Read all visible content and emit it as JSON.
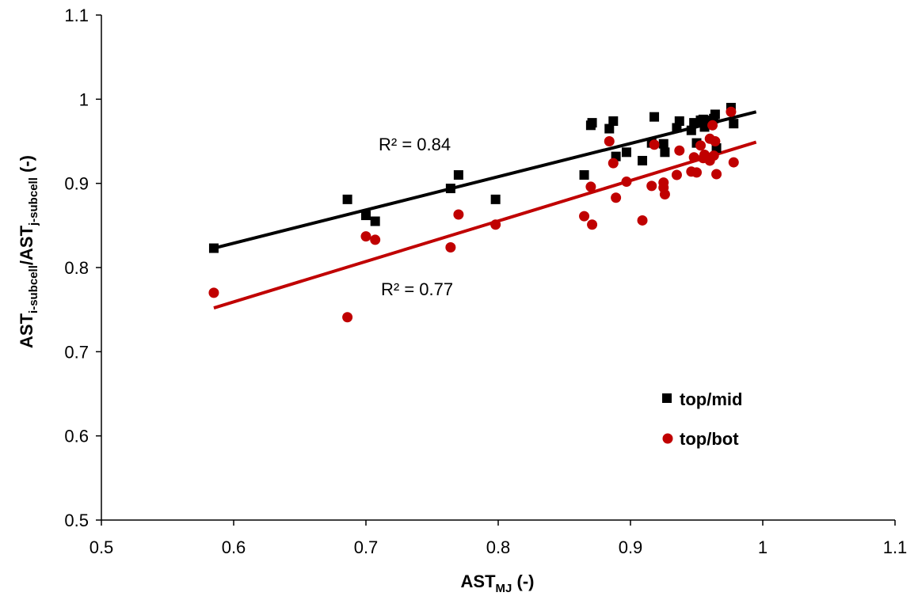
{
  "chart_data": {
    "type": "scatter",
    "title": "",
    "xlabel": {
      "main": "AST",
      "sub": "MJ",
      "suffix": " (-)"
    },
    "ylabel": {
      "p1": "AST",
      "s1": "i-subcell",
      "p2": "/AST",
      "s2": "j-subcell",
      "p3": " (-)"
    },
    "xlim": [
      0.5,
      1.1
    ],
    "ylim": [
      0.5,
      1.1
    ],
    "x_ticks": [
      "0.5",
      "0.6",
      "0.7",
      "0.8",
      "0.9",
      "1",
      "1.1"
    ],
    "y_ticks": [
      "0.5",
      "0.6",
      "0.7",
      "0.8",
      "0.9",
      "1",
      "1.1"
    ],
    "grid": false,
    "legend_position": "bottom-right",
    "series": [
      {
        "name": "top/mid",
        "marker": "square",
        "color": "#000000",
        "r2_label": "R² = 0.84",
        "trendline": {
          "x": [
            0.585,
            0.995
          ],
          "y": [
            0.823,
            0.985
          ]
        },
        "points": [
          [
            0.585,
            0.823
          ],
          [
            0.686,
            0.881
          ],
          [
            0.7,
            0.862
          ],
          [
            0.707,
            0.855
          ],
          [
            0.764,
            0.894
          ],
          [
            0.77,
            0.91
          ],
          [
            0.798,
            0.881
          ],
          [
            0.865,
            0.91
          ],
          [
            0.87,
            0.969
          ],
          [
            0.871,
            0.972
          ],
          [
            0.884,
            0.965
          ],
          [
            0.887,
            0.974
          ],
          [
            0.889,
            0.932
          ],
          [
            0.897,
            0.937
          ],
          [
            0.909,
            0.927
          ],
          [
            0.916,
            0.948
          ],
          [
            0.918,
            0.979
          ],
          [
            0.925,
            0.947
          ],
          [
            0.926,
            0.937
          ],
          [
            0.935,
            0.966
          ],
          [
            0.937,
            0.974
          ],
          [
            0.946,
            0.963
          ],
          [
            0.948,
            0.972
          ],
          [
            0.95,
            0.948
          ],
          [
            0.953,
            0.975
          ],
          [
            0.955,
            0.976
          ],
          [
            0.956,
            0.967
          ],
          [
            0.96,
            0.975
          ],
          [
            0.963,
            0.977
          ],
          [
            0.964,
            0.982
          ],
          [
            0.965,
            0.942
          ],
          [
            0.976,
            0.99
          ],
          [
            0.978,
            0.971
          ]
        ]
      },
      {
        "name": "top/bot",
        "marker": "circle",
        "color": "#c00000",
        "r2_label": "R² = 0.77",
        "trendline": {
          "x": [
            0.585,
            0.995
          ],
          "y": [
            0.752,
            0.949
          ]
        },
        "points": [
          [
            0.585,
            0.77
          ],
          [
            0.686,
            0.741
          ],
          [
            0.7,
            0.837
          ],
          [
            0.707,
            0.833
          ],
          [
            0.764,
            0.824
          ],
          [
            0.77,
            0.863
          ],
          [
            0.798,
            0.851
          ],
          [
            0.865,
            0.861
          ],
          [
            0.87,
            0.896
          ],
          [
            0.871,
            0.851
          ],
          [
            0.884,
            0.95
          ],
          [
            0.887,
            0.924
          ],
          [
            0.889,
            0.883
          ],
          [
            0.897,
            0.902
          ],
          [
            0.909,
            0.856
          ],
          [
            0.916,
            0.897
          ],
          [
            0.918,
            0.946
          ],
          [
            0.925,
            0.901
          ],
          [
            0.925,
            0.895
          ],
          [
            0.926,
            0.887
          ],
          [
            0.935,
            0.91
          ],
          [
            0.937,
            0.939
          ],
          [
            0.946,
            0.914
          ],
          [
            0.948,
            0.931
          ],
          [
            0.95,
            0.913
          ],
          [
            0.953,
            0.945
          ],
          [
            0.955,
            0.93
          ],
          [
            0.956,
            0.934
          ],
          [
            0.96,
            0.953
          ],
          [
            0.96,
            0.927
          ],
          [
            0.962,
            0.969
          ],
          [
            0.963,
            0.933
          ],
          [
            0.964,
            0.95
          ],
          [
            0.965,
            0.911
          ],
          [
            0.976,
            0.985
          ],
          [
            0.978,
            0.925
          ]
        ]
      }
    ]
  }
}
